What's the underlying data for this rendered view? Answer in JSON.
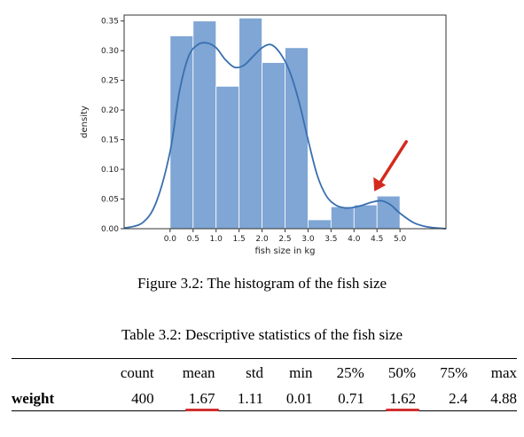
{
  "figure": {
    "caption": "Figure 3.2: The histogram of the fish size"
  },
  "table": {
    "caption": "Table 3.2: Descriptive statistics of the fish size",
    "columns": [
      "",
      "count",
      "mean",
      "std",
      "min",
      "25%",
      "50%",
      "75%",
      "max"
    ],
    "rows": [
      {
        "label": "weight",
        "values": [
          "400",
          "1.67",
          "1.11",
          "0.01",
          "0.71",
          "1.62",
          "2.4",
          "4.88"
        ],
        "highlighted": [
          false,
          true,
          false,
          false,
          false,
          true,
          false,
          false
        ]
      }
    ],
    "highlight_color": "#d32f2f"
  },
  "chart_data": {
    "type": "bar",
    "xlabel": "fish size in kg",
    "ylabel": "density",
    "xlim": [
      -1.0,
      6.0
    ],
    "ylim": [
      0,
      0.36
    ],
    "xticks": [
      0.0,
      0.5,
      1.0,
      1.5,
      2.0,
      2.5,
      3.0,
      3.5,
      4.0,
      4.5,
      5.0
    ],
    "xtick_labels": [
      "0.0",
      "0.5",
      "1.0",
      "1.5",
      "2.0",
      "2.5",
      "3.0",
      "3.5",
      "4.0",
      "4.5",
      "5.0"
    ],
    "yticks": [
      0.0,
      0.05,
      0.1,
      0.15,
      0.2,
      0.25,
      0.3,
      0.35
    ],
    "ytick_labels": [
      "0.00",
      "0.05",
      "0.10",
      "0.15",
      "0.20",
      "0.25",
      "0.30",
      "0.35"
    ],
    "bin_edges": [
      0.0,
      0.5,
      1.0,
      1.5,
      2.0,
      2.5,
      3.0,
      3.5,
      4.0,
      4.5,
      5.0
    ],
    "values": [
      0.325,
      0.35,
      0.24,
      0.355,
      0.28,
      0.305,
      0.015,
      0.037,
      0.04,
      0.055
    ],
    "kde": {
      "x": [
        -1.0,
        -0.6,
        -0.3,
        0.0,
        0.2,
        0.4,
        0.6,
        0.8,
        1.0,
        1.2,
        1.4,
        1.6,
        1.8,
        2.0,
        2.2,
        2.4,
        2.6,
        2.8,
        3.0,
        3.2,
        3.4,
        3.6,
        3.8,
        4.0,
        4.2,
        4.4,
        4.6,
        4.8,
        5.0,
        5.3,
        5.6,
        6.0
      ],
      "y": [
        0.001,
        0.01,
        0.045,
        0.13,
        0.23,
        0.29,
        0.31,
        0.313,
        0.305,
        0.285,
        0.272,
        0.275,
        0.29,
        0.305,
        0.31,
        0.295,
        0.265,
        0.215,
        0.15,
        0.09,
        0.055,
        0.04,
        0.035,
        0.036,
        0.04,
        0.045,
        0.047,
        0.04,
        0.026,
        0.01,
        0.003,
        0.0
      ]
    },
    "bar_color": "#7fa6d4",
    "line_color": "#3a6fb0",
    "arrow_color": "#d42a1e",
    "arrow_target": [
      4.5,
      0.048
    ]
  }
}
